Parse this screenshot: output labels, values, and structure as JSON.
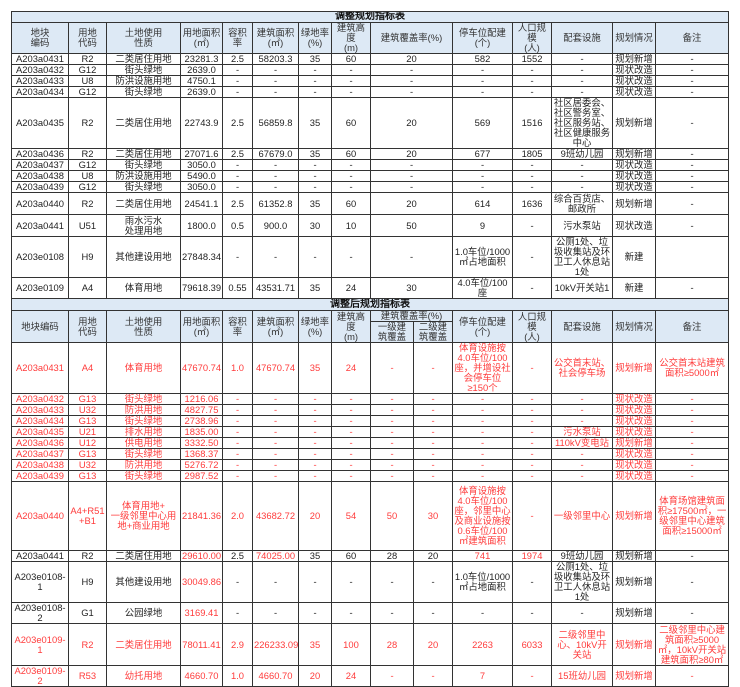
{
  "colors": {
    "header_bg": "#dde9f5",
    "highlight": "#ff3b3b",
    "text": "#222222"
  },
  "top_table": {
    "title": "调整规划指标表",
    "headers": [
      "地块\n编码",
      "用地\n代码",
      "土地使用\n性质",
      "用地面积\n(㎡)",
      "容积率",
      "建筑面积\n(㎡)",
      "绿地率\n(%)",
      "建筑高度\n(m)",
      "建筑覆盖率(%)",
      "停车位配建\n(个)",
      "人口规模\n(人)",
      "配套设施",
      "规划情况",
      "备注"
    ],
    "rows": [
      [
        "A203a0431",
        "R2",
        "二类居住用地",
        "23281.3",
        "2.5",
        "58203.3",
        "35",
        "60",
        "20",
        "582",
        "1552",
        "-",
        "规划新增",
        "-"
      ],
      [
        "A203a0432",
        "G12",
        "街头绿地",
        "2639.0",
        "-",
        "-",
        "-",
        "-",
        "-",
        "-",
        "-",
        "-",
        "现状改造",
        "-"
      ],
      [
        "A203a0433",
        "U8",
        "防洪设施用地",
        "4750.1",
        "-",
        "-",
        "-",
        "-",
        "-",
        "-",
        "-",
        "-",
        "现状改造",
        "-"
      ],
      [
        "A203a0434",
        "G12",
        "街头绿地",
        "2639.0",
        "-",
        "-",
        "-",
        "-",
        "-",
        "-",
        "-",
        "-",
        "现状改造",
        "-"
      ],
      [
        "A203a0435",
        "R2",
        "二类居住用地",
        "22743.9",
        "2.5",
        "56859.8",
        "35",
        "60",
        "20",
        "569",
        "1516",
        "社区居委会、社区警务室、社区服务站、社区健康服务中心",
        "规划新增",
        "-"
      ],
      [
        "A203a0436",
        "R2",
        "二类居住用地",
        "27071.6",
        "2.5",
        "67679.0",
        "35",
        "60",
        "20",
        "677",
        "1805",
        "9班幼儿园",
        "规划新增",
        "-"
      ],
      [
        "A203a0437",
        "G12",
        "街头绿地",
        "3050.0",
        "-",
        "-",
        "-",
        "-",
        "-",
        "-",
        "-",
        "-",
        "现状改造",
        "-"
      ],
      [
        "A203a0438",
        "U8",
        "防洪设施用地",
        "5490.0",
        "-",
        "-",
        "-",
        "-",
        "-",
        "-",
        "-",
        "-",
        "现状改造",
        "-"
      ],
      [
        "A203a0439",
        "G12",
        "街头绿地",
        "3050.0",
        "-",
        "-",
        "-",
        "-",
        "-",
        "-",
        "-",
        "-",
        "现状改造",
        "-"
      ],
      [
        "A203a0440",
        "R2",
        "二类居住用地",
        "24541.1",
        "2.5",
        "61352.8",
        "35",
        "60",
        "20",
        "614",
        "1636",
        "综合百货店、邮政所",
        "规划新增",
        "-"
      ],
      [
        "A203a0441",
        "U51",
        "雨水污水\n处理用地",
        "1800.0",
        "0.5",
        "900.0",
        "30",
        "10",
        "50",
        "9",
        "-",
        "污水泵站",
        "现状改造",
        "-"
      ],
      [
        "A203e0108",
        "H9",
        "其他建设用地",
        "27848.34",
        "-",
        "-",
        "-",
        "-",
        "-",
        "1.0车位/1000\n㎡占地面积",
        "-",
        "公厕1处、垃圾收集站及环卫工人休息站1处",
        "新建",
        ""
      ],
      [
        "A203e0109",
        "A4",
        "体育用地",
        "79618.39",
        "0.55",
        "43531.71",
        "35",
        "24",
        "30",
        "4.0车位/100座",
        "-",
        "10kV开关站1",
        "新建",
        "-"
      ]
    ]
  },
  "bottom_table": {
    "title": "调整后规划指标表",
    "headers": [
      "地块编码",
      "用地\n代码",
      "土地使用\n性质",
      "用地面积\n(㎡)",
      "容积率",
      "建筑面积\n(㎡)",
      "绿地率\n(%)",
      "建筑高度\n(m)",
      "建筑覆盖率(%)",
      "停车位配建\n(个)",
      "人口规模\n(人)",
      "配套设施",
      "规划情况",
      "备注"
    ],
    "subheaders": [
      "一级建\n筑覆盖",
      "二级建\n筑覆盖"
    ],
    "rows": [
      {
        "cells": [
          "A203a0431",
          "A4",
          "体育用地",
          "47670.74",
          "1.0",
          "47670.74",
          "35",
          "24",
          "-",
          "-",
          "体育设施按4.0车位/100座，并增设社会停车位≥150个",
          "-",
          "公交首末站、社会停车场",
          "规划新增",
          "公交首末站建筑面积≥5000㎡"
        ],
        "red": "all"
      },
      {
        "cells": [
          "A203a0432",
          "G13",
          "街头绿地",
          "1216.06",
          "-",
          "-",
          "-",
          "-",
          "-",
          "-",
          "-",
          "-",
          "-",
          "现状改造",
          "-"
        ],
        "red": "all"
      },
      {
        "cells": [
          "A203a0433",
          "U32",
          "防洪用地",
          "4827.75",
          "-",
          "-",
          "-",
          "-",
          "-",
          "-",
          "-",
          "-",
          "-",
          "现状改造",
          "-"
        ],
        "red": "all"
      },
      {
        "cells": [
          "A203a0434",
          "G13",
          "街头绿地",
          "2738.96",
          "-",
          "-",
          "-",
          "-",
          "-",
          "-",
          "-",
          "-",
          "-",
          "现状改造",
          "-"
        ],
        "red": "all"
      },
      {
        "cells": [
          "A203a0435",
          "U21",
          "排水用地",
          "1835.00",
          "-",
          "-",
          "-",
          "-",
          "-",
          "-",
          "-",
          "-",
          "污水泵站",
          "现状改造",
          "-"
        ],
        "red": "all"
      },
      {
        "cells": [
          "A203a0436",
          "U12",
          "供电用地",
          "3332.50",
          "-",
          "-",
          "-",
          "-",
          "-",
          "-",
          "-",
          "-",
          "110kV变电站",
          "规划新增",
          "-"
        ],
        "red": "all"
      },
      {
        "cells": [
          "A203a0437",
          "G13",
          "街头绿地",
          "1368.37",
          "-",
          "-",
          "-",
          "-",
          "-",
          "-",
          "-",
          "-",
          "-",
          "现状改造",
          "-"
        ],
        "red": "all"
      },
      {
        "cells": [
          "A203a0438",
          "U32",
          "防洪用地",
          "5276.72",
          "-",
          "-",
          "-",
          "-",
          "-",
          "-",
          "-",
          "-",
          "-",
          "现状改造",
          "-"
        ],
        "red": "all"
      },
      {
        "cells": [
          "A203a0439",
          "G13",
          "街头绿地",
          "2987.52",
          "-",
          "-",
          "-",
          "-",
          "-",
          "-",
          "-",
          "-",
          "-",
          "现状改造",
          "-"
        ],
        "red": "all"
      },
      {
        "cells": [
          "A203a0440",
          "A4+R51\n+B1",
          "体育用地+\n一级邻里中心用地+商业用地",
          "21841.36",
          "2.0",
          "43682.72",
          "20",
          "54",
          "50",
          "30",
          "体育设施按4.0车位/100座，邻里中心及商业设施按0.6车位/100㎡建筑面积",
          "-",
          "一级邻里中心",
          "规划新增",
          "体育场馆建筑面积≥17500㎡，一级邻里中心建筑面积≥15000㎡"
        ],
        "red": "all"
      },
      {
        "cells": [
          "A203a0441",
          "R2",
          "二类居住用地",
          "29610.00",
          "2.5",
          "74025.00",
          "35",
          "60",
          "28",
          "20",
          "741",
          "1974",
          "9班幼儿园",
          "规划新增",
          "-"
        ],
        "red": [
          3,
          5,
          10,
          11
        ]
      },
      {
        "cells": [
          "A203e0108-1",
          "H9",
          "其他建设用地",
          "30049.86",
          "-",
          "-",
          "-",
          "-",
          "-",
          "-",
          "1.0车位/1000\n㎡占地面积",
          "-",
          "公厕1处、垃圾收集站及环卫工人休息站1处",
          "规划新增",
          "-"
        ],
        "red": [
          3
        ]
      },
      {
        "cells": [
          "A203e0108-2",
          "G1",
          "公园绿地",
          "3169.41",
          "-",
          "-",
          "-",
          "-",
          "-",
          "-",
          "-",
          "-",
          "-",
          "规划新增",
          "-"
        ],
        "red": [
          3
        ]
      },
      {
        "cells": [
          "A203e0109-1",
          "R2",
          "二类居住用地",
          "78011.41",
          "2.9",
          "226233.09",
          "35",
          "100",
          "28",
          "20",
          "2263",
          "6033",
          "二级邻里中心、10kV开关站",
          "规划新增",
          "二级邻里中心建筑面积≥5000㎡，10kV开关站建筑面积≥80㎡"
        ],
        "red": "all"
      },
      {
        "cells": [
          "A203e0109-2",
          "R53",
          "幼托用地",
          "4660.70",
          "1.0",
          "4660.70",
          "20",
          "24",
          "-",
          "-",
          "7",
          "-",
          "15班幼儿园",
          "规划新增",
          "-"
        ],
        "red": "all"
      }
    ]
  }
}
